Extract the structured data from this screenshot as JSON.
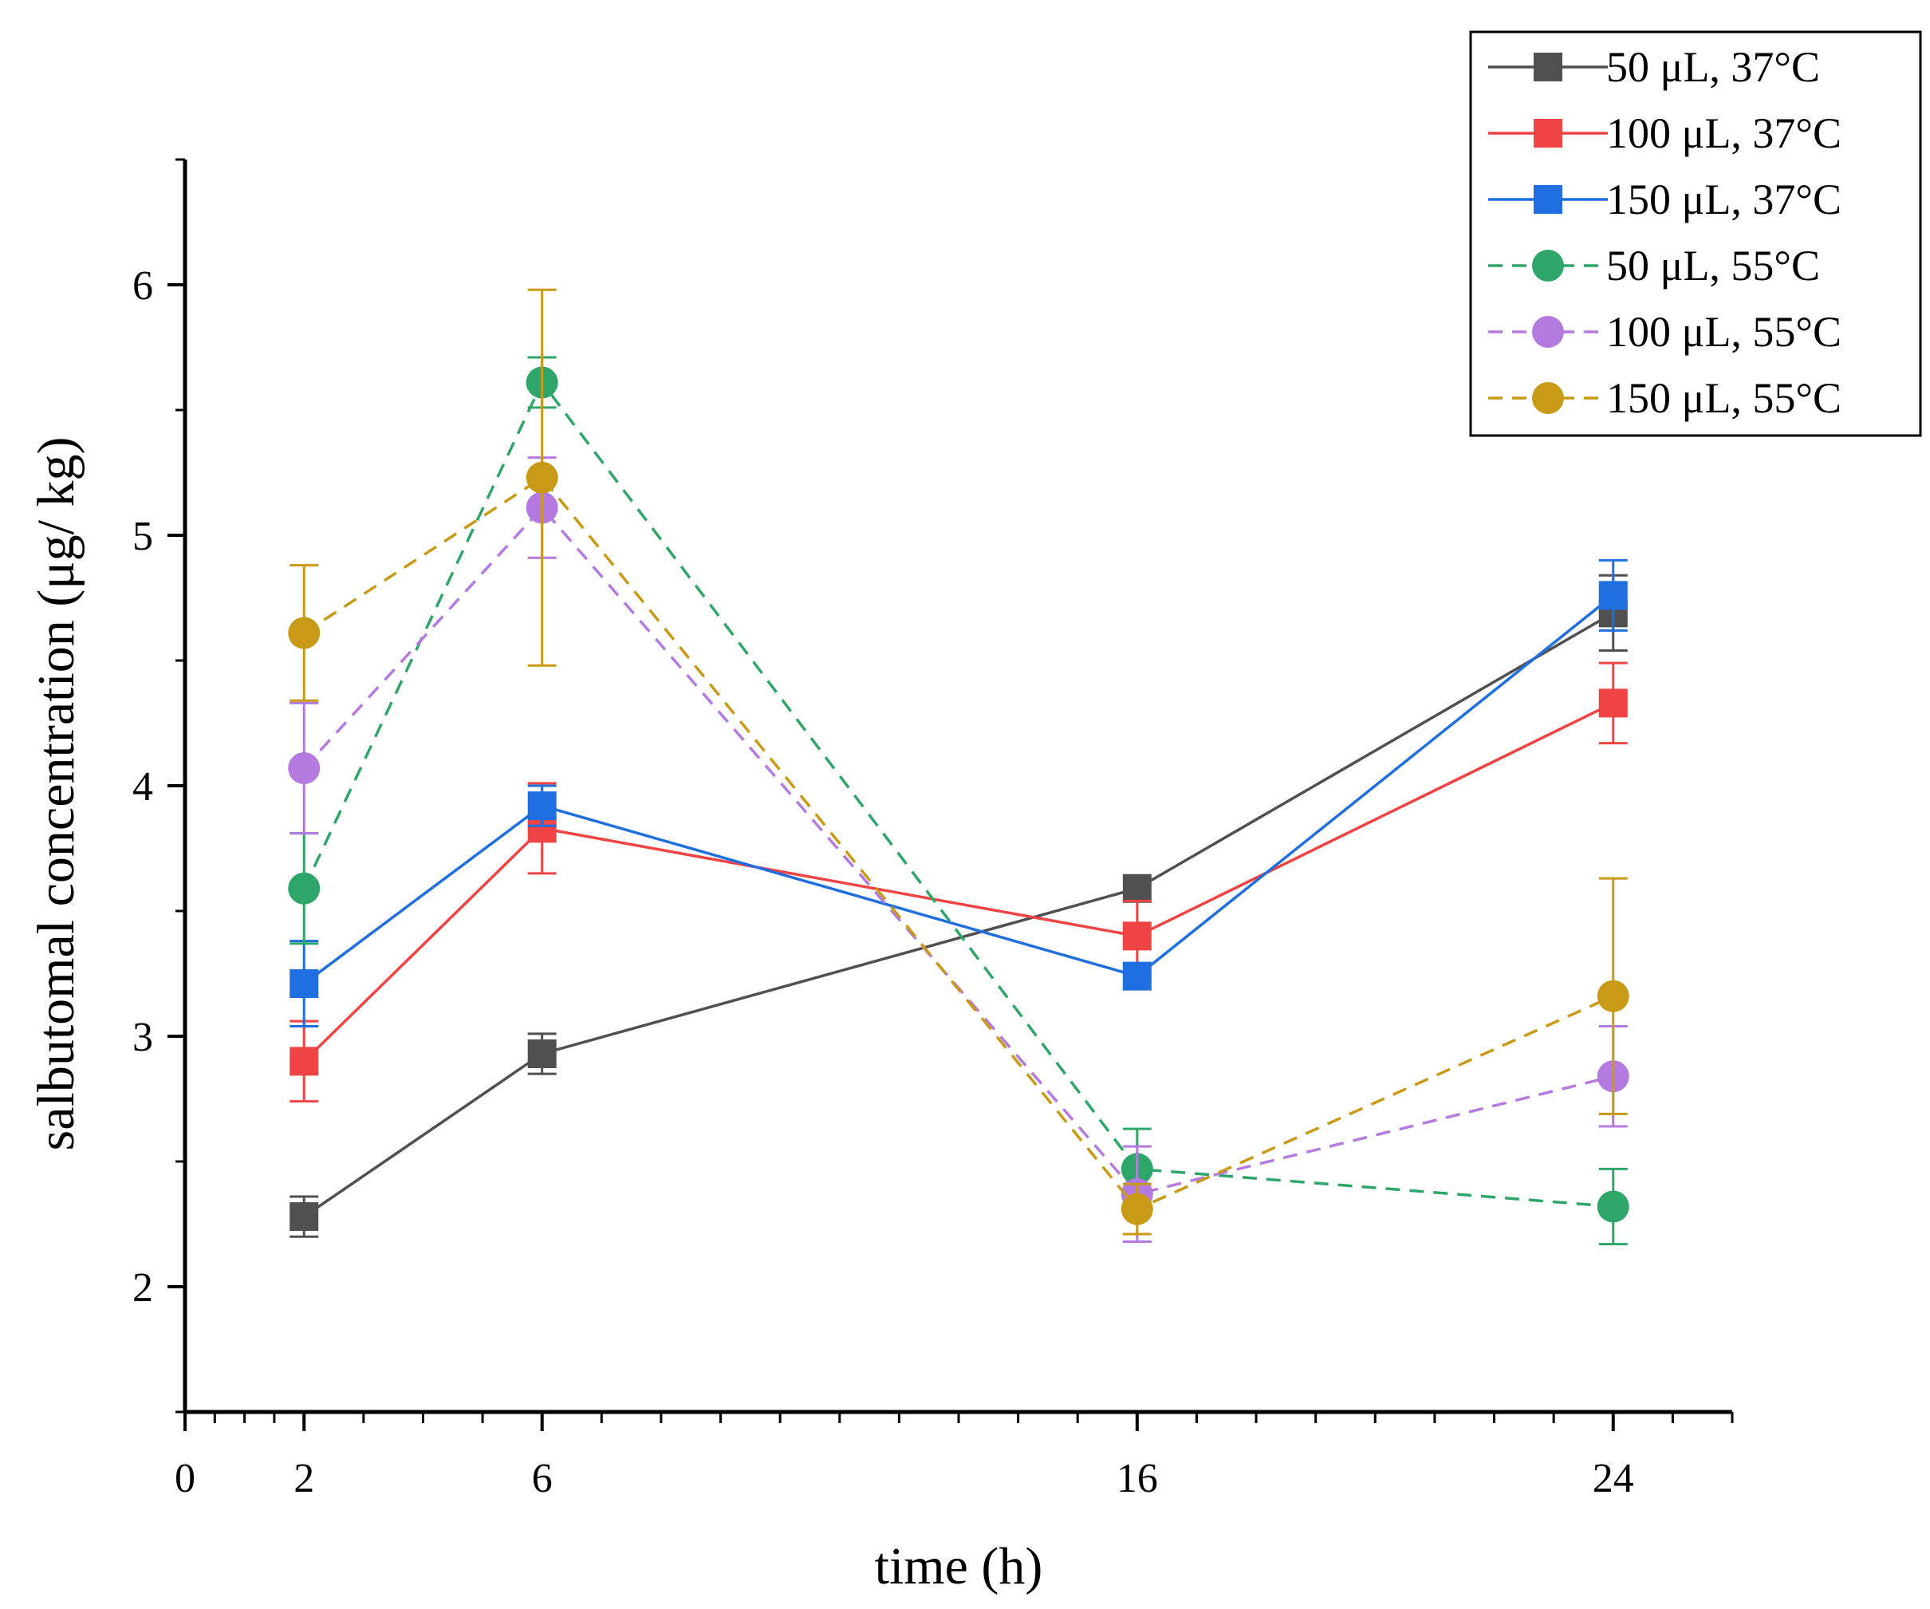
{
  "chart_data": {
    "type": "line",
    "title": "",
    "xlabel": "time (h)",
    "ylabel": "salbutomal concentration (μg/ kg)",
    "xlim": [
      0,
      26
    ],
    "ylim": [
      1.5,
      6.5
    ],
    "x_ticks": [
      0,
      2,
      6,
      16,
      24
    ],
    "y_ticks": [
      2,
      3,
      4,
      5,
      6
    ],
    "x_tick_labels": [
      "0",
      "2",
      "6",
      "16",
      "24"
    ],
    "y_tick_labels": [
      "2",
      "3",
      "4",
      "5",
      "6"
    ],
    "grid": false,
    "legend_position": "top-right",
    "x": [
      2,
      6,
      16,
      24
    ],
    "series": [
      {
        "name": "50 μL, 37°C",
        "color": "#505050",
        "marker": "square",
        "line": "solid",
        "values": [
          2.28,
          2.93,
          3.59,
          4.69
        ],
        "errors": [
          0.08,
          0.08,
          0.0,
          0.15
        ]
      },
      {
        "name": "100 μL, 37°C",
        "color": "#f04444",
        "marker": "square",
        "line": "solid",
        "values": [
          2.9,
          3.83,
          3.4,
          4.33
        ],
        "errors": [
          0.16,
          0.18,
          0.14,
          0.16
        ]
      },
      {
        "name": "150 μL, 37°C",
        "color": "#1f6fe0",
        "marker": "square",
        "line": "solid",
        "values": [
          3.21,
          3.92,
          3.24,
          4.76
        ],
        "errors": [
          0.17,
          0.08,
          0.05,
          0.14
        ]
      },
      {
        "name": "50 μL, 55°C",
        "color": "#2ea66a",
        "marker": "circle",
        "line": "dashed",
        "values": [
          3.59,
          5.61,
          2.47,
          2.32
        ],
        "errors": [
          0.22,
          0.1,
          0.16,
          0.15
        ]
      },
      {
        "name": "100 μL, 55°C",
        "color": "#b57ae0",
        "marker": "circle",
        "line": "dashed",
        "values": [
          4.07,
          5.11,
          2.37,
          2.84
        ],
        "errors": [
          0.26,
          0.2,
          0.19,
          0.2
        ]
      },
      {
        "name": "150 μL, 55°C",
        "color": "#c99a16",
        "marker": "circle",
        "line": "dashed",
        "values": [
          4.61,
          5.23,
          2.31,
          3.16
        ],
        "errors": [
          0.27,
          0.75,
          0.1,
          0.47
        ]
      }
    ]
  }
}
